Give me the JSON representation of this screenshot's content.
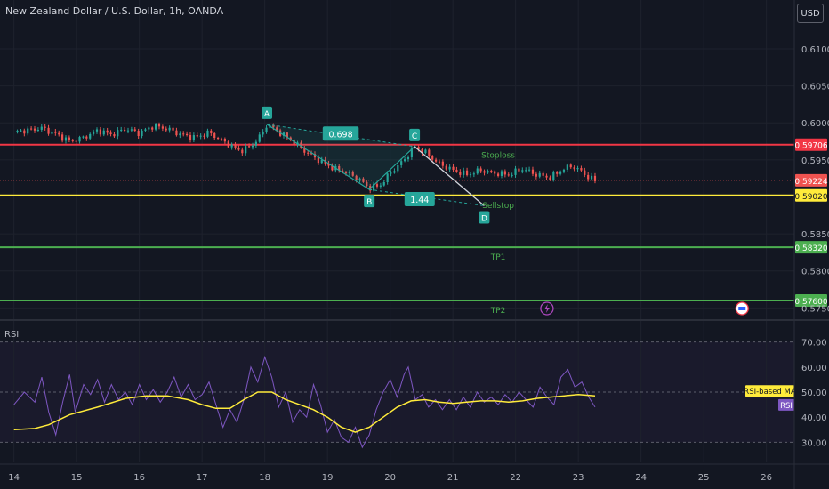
{
  "header": {
    "title": "New Zealand Dollar / U.S. Dollar, 1h, OANDA",
    "currency_button": "USD"
  },
  "colors": {
    "background": "#131722",
    "bull": "#26a69a",
    "bear": "#ef5350",
    "stoploss": "#f23645",
    "sellstop": "#ffeb3b",
    "tp": "#4caf50",
    "pattern": "#26a69a",
    "rsi": "#7e57c2",
    "rsi_ma": "#ffeb3b"
  },
  "chart_data": [
    {
      "type": "candlestick",
      "y_ticks": [
        "0.61000",
        "0.60500",
        "0.60000",
        "0.59500",
        "0.58500",
        "0.58000",
        "0.57500"
      ],
      "ylim": [
        0.5736,
        0.613
      ],
      "current_price": "0.59224",
      "price_series": [
        [
          0,
          0.5988
        ],
        [
          2,
          0.599
        ],
        [
          4,
          0.5993
        ],
        [
          6,
          0.5985
        ],
        [
          8,
          0.5975
        ],
        [
          10,
          0.598
        ],
        [
          12,
          0.599
        ],
        [
          14,
          0.5984
        ],
        [
          16,
          0.5992
        ],
        [
          18,
          0.5986
        ],
        [
          20,
          0.5996
        ],
        [
          22,
          0.5992
        ],
        [
          24,
          0.5984
        ],
        [
          26,
          0.598
        ],
        [
          28,
          0.5987
        ],
        [
          29.5,
          0.5978
        ],
        [
          31,
          0.597
        ],
        [
          32.5,
          0.5962
        ],
        [
          34,
          0.5968
        ],
        [
          35.6,
          0.5985
        ],
        [
          36.3,
          0.5998
        ],
        [
          38,
          0.5988
        ],
        [
          40,
          0.5975
        ],
        [
          42,
          0.596
        ],
        [
          44,
          0.5948
        ],
        [
          46,
          0.5938
        ],
        [
          48,
          0.5932
        ],
        [
          49.5,
          0.5924
        ],
        [
          51,
          0.5912
        ],
        [
          52.5,
          0.5915
        ],
        [
          54,
          0.5932
        ],
        [
          56,
          0.595
        ],
        [
          57.5,
          0.5968
        ],
        [
          59,
          0.596
        ],
        [
          61,
          0.5945
        ],
        [
          63,
          0.5936
        ],
        [
          65,
          0.593
        ],
        [
          67,
          0.5936
        ],
        [
          69,
          0.5932
        ],
        [
          71,
          0.593
        ],
        [
          73,
          0.5938
        ],
        [
          75,
          0.593
        ],
        [
          77,
          0.5926
        ],
        [
          78.5,
          0.5936
        ],
        [
          80,
          0.5942
        ],
        [
          81.5,
          0.5934
        ],
        [
          82.5,
          0.5926
        ],
        [
          83.4,
          0.5922
        ]
      ],
      "lines": [
        {
          "name": "Stoploss",
          "price": 0.59706,
          "label": "0.59706",
          "color": "#f23645"
        },
        {
          "name": "Sellstop",
          "price": 0.5902,
          "label": "0.59020",
          "color": "#ffeb3b"
        },
        {
          "name": "TP1",
          "price": 0.5832,
          "label": "0.58320",
          "color": "#4caf50"
        },
        {
          "name": "TP2",
          "price": 0.576,
          "label": "0.57600",
          "color": "#4caf50"
        }
      ],
      "pattern": {
        "points": [
          {
            "name": "A",
            "x": 36.3,
            "y": 0.5998
          },
          {
            "name": "B",
            "x": 51,
            "y": 0.591
          },
          {
            "name": "C",
            "x": 57.5,
            "y": 0.5968
          },
          {
            "name": "D",
            "x": 67.5,
            "y": 0.5888
          }
        ],
        "ratios": [
          "0.698",
          "1.44"
        ]
      },
      "annotations": [
        "Stoploss",
        "Sellstop",
        "TP1",
        "TP2"
      ]
    },
    {
      "type": "line",
      "title": "RSI",
      "y_ticks": [
        "70.00",
        "60.00",
        "50.00",
        "40.00",
        "30.00"
      ],
      "ylim": [
        22,
        78
      ],
      "levels": [
        70,
        50,
        30
      ],
      "series": [
        {
          "name": "RSI",
          "color": "#7e57c2",
          "values": [
            [
              0,
              45
            ],
            [
              1.5,
              50
            ],
            [
              3,
              46
            ],
            [
              4,
              56
            ],
            [
              5,
              42
            ],
            [
              6,
              33
            ],
            [
              7,
              46
            ],
            [
              8,
              57
            ],
            [
              8.8,
              42
            ],
            [
              10,
              53
            ],
            [
              11,
              49
            ],
            [
              12,
              55
            ],
            [
              13,
              46
            ],
            [
              14,
              53
            ],
            [
              15,
              47
            ],
            [
              16,
              50
            ],
            [
              17,
              45
            ],
            [
              18,
              53
            ],
            [
              19,
              47
            ],
            [
              20,
              51
            ],
            [
              21,
              46
            ],
            [
              22,
              50
            ],
            [
              23,
              56
            ],
            [
              24,
              48
            ],
            [
              25,
              53
            ],
            [
              26,
              47
            ],
            [
              27,
              49
            ],
            [
              28,
              54
            ],
            [
              29,
              45
            ],
            [
              30,
              36
            ],
            [
              31,
              43
            ],
            [
              32,
              38
            ],
            [
              33,
              47
            ],
            [
              34,
              60
            ],
            [
              35,
              54
            ],
            [
              36,
              64
            ],
            [
              37,
              56
            ],
            [
              38,
              44
            ],
            [
              39,
              50
            ],
            [
              40,
              38
            ],
            [
              41,
              43
            ],
            [
              42,
              40
            ],
            [
              43,
              53
            ],
            [
              44,
              45
            ],
            [
              45,
              34
            ],
            [
              46,
              39
            ],
            [
              47,
              32
            ],
            [
              48,
              30
            ],
            [
              49,
              36
            ],
            [
              50,
              28
            ],
            [
              51,
              33
            ],
            [
              52,
              43
            ],
            [
              53,
              50
            ],
            [
              54,
              55
            ],
            [
              55,
              48
            ],
            [
              56,
              57
            ],
            [
              56.6,
              60
            ],
            [
              57.6,
              47
            ],
            [
              58.6,
              49
            ],
            [
              59.5,
              44
            ],
            [
              60.5,
              47
            ],
            [
              61.5,
              43
            ],
            [
              62.5,
              47
            ],
            [
              63.5,
              43
            ],
            [
              64.5,
              48
            ],
            [
              65.5,
              44
            ],
            [
              66.5,
              50
            ],
            [
              67.5,
              46
            ],
            [
              68.5,
              48
            ],
            [
              69.5,
              45
            ],
            [
              70.5,
              49
            ],
            [
              71.5,
              46
            ],
            [
              72.5,
              50
            ],
            [
              73.5,
              47
            ],
            [
              74.5,
              44
            ],
            [
              75.5,
              52
            ],
            [
              76.5,
              48
            ],
            [
              77.5,
              45
            ],
            [
              78.5,
              56
            ],
            [
              79.5,
              59
            ],
            [
              80.5,
              52
            ],
            [
              81.5,
              54
            ],
            [
              82.5,
              48
            ],
            [
              83.4,
              44
            ]
          ]
        },
        {
          "name": "RSI-based MA",
          "color": "#ffeb3b",
          "values": [
            [
              0,
              35
            ],
            [
              3,
              35.5
            ],
            [
              5,
              37
            ],
            [
              8,
              41
            ],
            [
              12,
              44
            ],
            [
              16,
              47.5
            ],
            [
              19,
              48.5
            ],
            [
              22,
              48.5
            ],
            [
              25,
              47
            ],
            [
              27,
              45
            ],
            [
              29,
              43.5
            ],
            [
              31,
              43.5
            ],
            [
              33,
              47
            ],
            [
              35,
              50
            ],
            [
              37,
              50
            ],
            [
              39,
              47
            ],
            [
              41,
              45
            ],
            [
              43,
              43
            ],
            [
              45,
              40
            ],
            [
              47,
              36
            ],
            [
              49,
              34
            ],
            [
              51,
              36
            ],
            [
              53,
              40
            ],
            [
              55,
              44
            ],
            [
              57,
              46.5
            ],
            [
              59,
              47
            ],
            [
              61,
              46
            ],
            [
              63,
              45.5
            ],
            [
              65,
              46
            ],
            [
              67,
              46.5
            ],
            [
              69,
              46.5
            ],
            [
              71,
              46
            ],
            [
              73,
              46.5
            ],
            [
              75,
              47.5
            ],
            [
              77,
              48
            ],
            [
              79,
              48.5
            ],
            [
              81,
              49
            ],
            [
              83.4,
              48.5
            ]
          ]
        }
      ],
      "labels": [
        "RSI-based MA",
        "RSI"
      ]
    }
  ],
  "x_axis": {
    "ticks": [
      "14",
      "15",
      "16",
      "17",
      "18",
      "19",
      "20",
      "21",
      "22",
      "23",
      "24",
      "25",
      "26"
    ],
    "tick_positions": [
      0,
      9,
      18,
      27,
      36,
      45,
      54,
      63,
      72,
      81,
      90,
      99,
      108
    ]
  },
  "x_domain": [
    -2,
    112
  ]
}
